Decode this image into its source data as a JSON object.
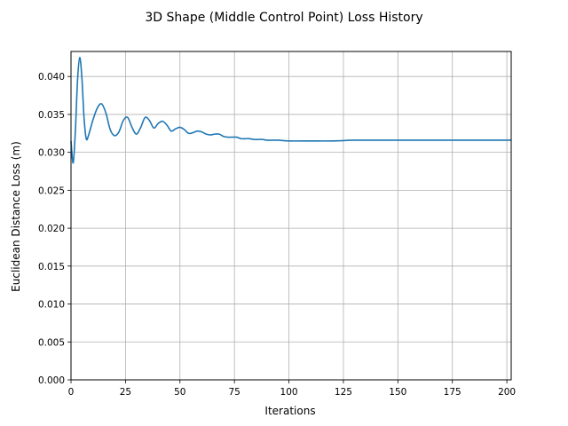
{
  "chart_data": {
    "type": "line",
    "title": "3D Shape (Middle Control Point) Loss History",
    "xlabel": "Iterations",
    "ylabel": "Euclidean Distance Loss (m)",
    "xlim": [
      0,
      202
    ],
    "ylim": [
      0,
      0.0433
    ],
    "grid": true,
    "xticks": [
      "0",
      "25",
      "50",
      "75",
      "100",
      "125",
      "150",
      "175",
      "200"
    ],
    "yticks": [
      "0.000",
      "0.005",
      "0.010",
      "0.015",
      "0.020",
      "0.025",
      "0.030",
      "0.035",
      "0.040"
    ],
    "colors": {
      "line": "#1f77b4",
      "grid": "#b0b0b0",
      "axes": "#000000"
    },
    "series": [
      {
        "x": [
          0,
          1,
          2,
          3,
          4,
          5,
          6,
          7,
          8,
          10,
          12,
          14,
          16,
          18,
          20,
          22,
          24,
          26,
          28,
          30,
          32,
          34,
          36,
          38,
          40,
          42,
          44,
          46,
          48,
          50,
          52,
          54,
          56,
          58,
          60,
          62,
          64,
          66,
          68,
          70,
          72,
          74,
          76,
          78,
          80,
          82,
          84,
          86,
          88,
          90,
          95,
          100,
          110,
          120,
          130,
          140,
          150,
          160,
          170,
          180,
          190,
          202
        ],
        "y": [
          0.0315,
          0.0286,
          0.0328,
          0.0395,
          0.0425,
          0.0398,
          0.0345,
          0.0318,
          0.0322,
          0.0342,
          0.0358,
          0.0364,
          0.0352,
          0.033,
          0.0322,
          0.0327,
          0.0342,
          0.0346,
          0.0333,
          0.0324,
          0.0333,
          0.0346,
          0.0342,
          0.0332,
          0.0338,
          0.0341,
          0.0336,
          0.0328,
          0.0331,
          0.0333,
          0.033,
          0.0325,
          0.0326,
          0.0328,
          0.0327,
          0.0324,
          0.0323,
          0.0324,
          0.0324,
          0.0321,
          0.032,
          0.032,
          0.032,
          0.0318,
          0.0318,
          0.0318,
          0.0317,
          0.0317,
          0.0317,
          0.0316,
          0.0316,
          0.0315,
          0.0315,
          0.0315,
          0.0316,
          0.0316,
          0.0316,
          0.0316,
          0.0316,
          0.0316,
          0.0316,
          0.0316
        ]
      }
    ]
  }
}
